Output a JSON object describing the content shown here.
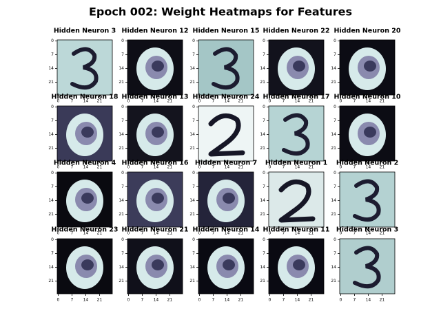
{
  "chart_data": {
    "type": "heatmap",
    "title": "Epoch 002: Weight Heatmaps for Features",
    "xlim": [
      -0.5,
      27.5
    ],
    "ylim": [
      27.5,
      -0.5
    ],
    "xticks": [
      0,
      7,
      14,
      21
    ],
    "yticks": [
      0,
      7,
      14,
      21
    ],
    "panels": [
      {
        "title": "Hidden Neuron 3",
        "pattern": "three",
        "color": "#bcd8d8"
      },
      {
        "title": "Hidden Neuron 12",
        "pattern": "ring",
        "color": "#0e0e16"
      },
      {
        "title": "Hidden Neuron 15",
        "pattern": "three",
        "color": "#a4c6c6"
      },
      {
        "title": "Hidden Neuron 22",
        "pattern": "ring",
        "color": "#12121c"
      },
      {
        "title": "Hidden Neuron 20",
        "pattern": "ring",
        "color": "#0c0c14"
      },
      {
        "title": "Hidden Neuron 18",
        "pattern": "ring",
        "color": "#3a3a58"
      },
      {
        "title": "Hidden Neuron 13",
        "pattern": "ring",
        "color": "#14141e"
      },
      {
        "title": "Hidden Neuron 24",
        "pattern": "two",
        "color": "#eef5f5"
      },
      {
        "title": "Hidden Neuron 17",
        "pattern": "three",
        "color": "#b6d4d4"
      },
      {
        "title": "Hidden Neuron 10",
        "pattern": "ring",
        "color": "#0c0c14"
      },
      {
        "title": "Hidden Neuron 4",
        "pattern": "ring",
        "color": "#0a0a10"
      },
      {
        "title": "Hidden Neuron 16",
        "pattern": "ring",
        "color": "#3c3c5a"
      },
      {
        "title": "Hidden Neuron 7",
        "pattern": "ring",
        "color": "#24243a"
      },
      {
        "title": "Hidden Neuron 1",
        "pattern": "two",
        "color": "#dce9e9"
      },
      {
        "title": "Hidden Neuron 2",
        "pattern": "three",
        "color": "#b4d2d2"
      },
      {
        "title": "Hidden Neuron 23",
        "pattern": "ring",
        "color": "#0a0a10"
      },
      {
        "title": "Hidden Neuron 21",
        "pattern": "ring",
        "color": "#10101a"
      },
      {
        "title": "Hidden Neuron 14",
        "pattern": "ring",
        "color": "#0a0a12"
      },
      {
        "title": "Hidden Neuron 11",
        "pattern": "ring",
        "color": "#0a0a12"
      },
      {
        "title": "Hidden Neuron 3",
        "pattern": "three",
        "color": "#b0cece"
      }
    ]
  }
}
